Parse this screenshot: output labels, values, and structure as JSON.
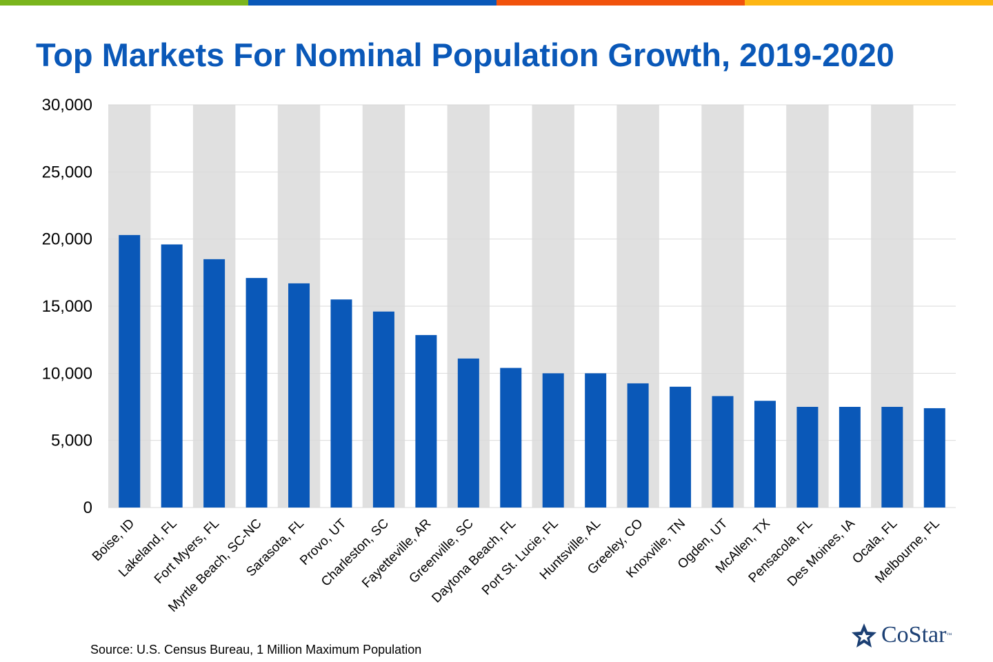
{
  "header": {
    "stripe_colors": [
      "#7ab51d",
      "#0a58b8",
      "#f1520c",
      "#fdb614"
    ]
  },
  "chart_data": {
    "type": "bar",
    "title": "Top Markets For Nominal Population Growth, 2019-2020",
    "xlabel": "",
    "ylabel": "",
    "categories": [
      "Boise, ID",
      "Lakeland, FL",
      "Fort Myers, FL",
      "Myrtle Beach, SC-NC",
      "Sarasota, FL",
      "Provo, UT",
      "Charleston, SC",
      "Fayetteville, AR",
      "Greenville, SC",
      "Daytona Beach, FL",
      "Port St. Lucie, FL",
      "Huntsville, AL",
      "Greeley, CO",
      "Knoxville, TN",
      "Ogden, UT",
      "McAllen, TX",
      "Pensacola, FL",
      "Des Moines, IA",
      "Ocala, FL",
      "Melbourne, FL"
    ],
    "values": [
      20300,
      19600,
      18500,
      17100,
      16700,
      15500,
      14600,
      12850,
      11100,
      10400,
      10000,
      10000,
      9250,
      9000,
      8300,
      7950,
      7500,
      7500,
      7500,
      7400
    ],
    "ylim": [
      0,
      30000
    ],
    "yticks": [
      "0",
      "5,000",
      "10,000",
      "15,000",
      "20,000",
      "25,000",
      "30,000"
    ],
    "bar_color": "#0a58b8",
    "band_color": "#e0e0e0",
    "grid": true,
    "legend": "none"
  },
  "footer": {
    "source": "Source: U.S. Census Bureau, 1 Million Maximum Population",
    "logo_text": "CoStar",
    "logo_tm": "™"
  }
}
